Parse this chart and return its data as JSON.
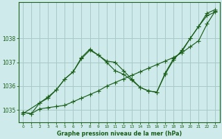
{
  "background_color": "#ceeaea",
  "grid_color": "#a8c8c8",
  "line_color": "#1a5e1a",
  "xlabel": "Graphe pression niveau de la mer (hPa)",
  "xlabel_color": "#1a5e1a",
  "tick_color": "#1a5e1a",
  "ylim": [
    1034.5,
    1039.5
  ],
  "xlim": [
    -0.5,
    23.5
  ],
  "yticks": [
    1035,
    1036,
    1037,
    1038
  ],
  "xticks": [
    0,
    1,
    2,
    3,
    4,
    5,
    6,
    7,
    8,
    9,
    10,
    11,
    12,
    13,
    14,
    15,
    16,
    17,
    18,
    19,
    20,
    21,
    22,
    23
  ],
  "series1_x": [
    0,
    1,
    2,
    3,
    4,
    5,
    6,
    7,
    8,
    9,
    10,
    11,
    12,
    13,
    14,
    15,
    16,
    17,
    18,
    19,
    20,
    21,
    22,
    23
  ],
  "series1_y": [
    1034.9,
    1034.85,
    1035.05,
    1035.1,
    1035.15,
    1035.2,
    1035.35,
    1035.5,
    1035.65,
    1035.8,
    1036.0,
    1036.15,
    1036.3,
    1036.45,
    1036.6,
    1036.75,
    1036.9,
    1037.05,
    1037.2,
    1037.4,
    1037.65,
    1037.9,
    1038.6,
    1039.15
  ],
  "series2_x": [
    0,
    2,
    3,
    4,
    5,
    6,
    7,
    8,
    9,
    10,
    11,
    12,
    13,
    14,
    15,
    16,
    17,
    18,
    19,
    20,
    21,
    22,
    23
  ],
  "series2_y": [
    1034.85,
    1035.3,
    1035.5,
    1035.85,
    1036.3,
    1036.6,
    1037.2,
    1037.55,
    1037.3,
    1037.05,
    1037.0,
    1036.65,
    1036.3,
    1035.95,
    1035.8,
    1035.75,
    1036.55,
    1037.15,
    1037.45,
    1038.0,
    1038.5,
    1038.95,
    1039.1
  ],
  "series3_x": [
    0,
    1,
    2,
    3,
    4,
    5,
    6,
    7,
    8,
    9,
    10,
    11,
    12,
    13,
    14,
    15,
    16,
    17,
    18,
    19,
    20,
    21,
    22,
    23
  ],
  "series3_y": [
    1034.9,
    1034.85,
    1035.3,
    1035.55,
    1035.85,
    1036.3,
    1036.6,
    1037.15,
    1037.5,
    1037.3,
    1037.0,
    1036.65,
    1036.5,
    1036.25,
    1035.95,
    1035.8,
    1035.75,
    1036.5,
    1037.1,
    1037.5,
    1038.0,
    1038.5,
    1039.05,
    1039.2
  ]
}
